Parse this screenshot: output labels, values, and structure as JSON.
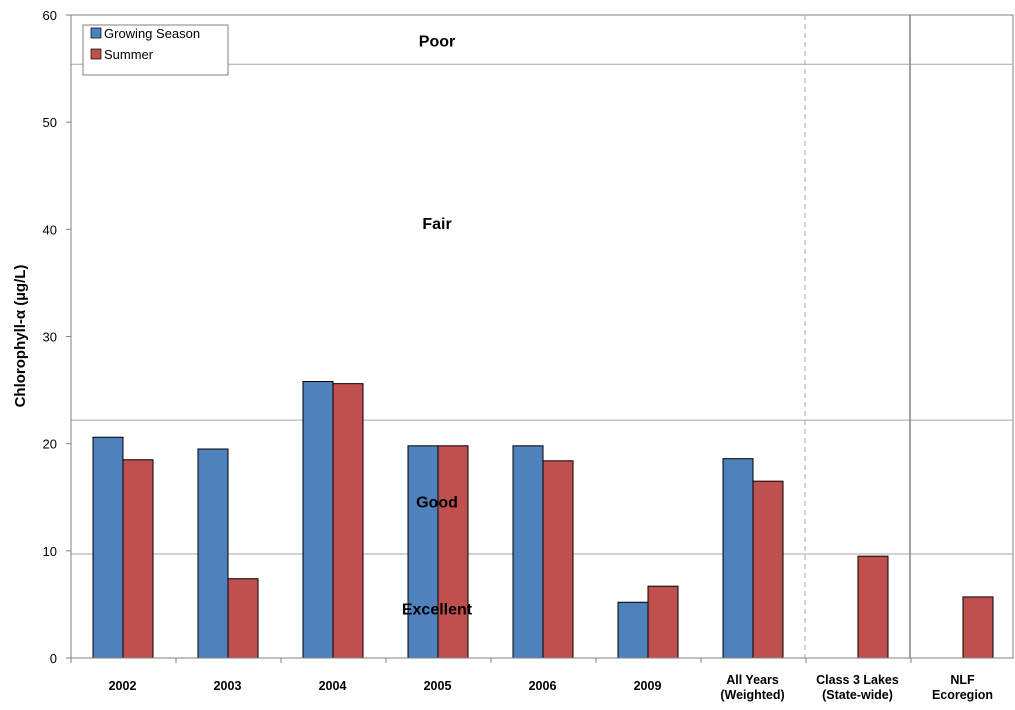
{
  "chart_data": {
    "type": "bar",
    "ylabel": "Chlorophyll-α (µg/L)",
    "ylim": [
      0,
      60
    ],
    "yticks": [
      0,
      10,
      20,
      30,
      40,
      50,
      60
    ],
    "grid": false,
    "legend_position": "top-left",
    "categories": [
      [
        "2002"
      ],
      [
        "2003"
      ],
      [
        "2004"
      ],
      [
        "2005"
      ],
      [
        "2006"
      ],
      [
        "2009"
      ],
      [
        "All Years",
        "(Weighted)"
      ],
      [
        "Class 3 Lakes",
        "(State-wide)"
      ],
      [
        "NLF",
        "Ecoregion"
      ]
    ],
    "series": [
      {
        "name": "Growing Season",
        "color": "#4F81BD",
        "values": [
          20.6,
          19.5,
          25.8,
          19.8,
          19.8,
          5.2,
          18.6,
          null,
          null
        ]
      },
      {
        "name": "Summer",
        "color": "#C0504D",
        "values": [
          18.5,
          7.4,
          25.6,
          19.8,
          18.4,
          6.7,
          16.5,
          9.5,
          5.7
        ]
      }
    ],
    "thresholds": [
      9.7,
      22.2,
      55.4
    ],
    "zones": [
      {
        "label": "Poor",
        "value": 57.6
      },
      {
        "label": "Fair",
        "value": 40.6
      },
      {
        "label": "Good",
        "value": 14.6
      },
      {
        "label": "Excellent",
        "value": 4.6
      }
    ],
    "dashed_separator_after": 6,
    "solid_separator_after": 8
  }
}
